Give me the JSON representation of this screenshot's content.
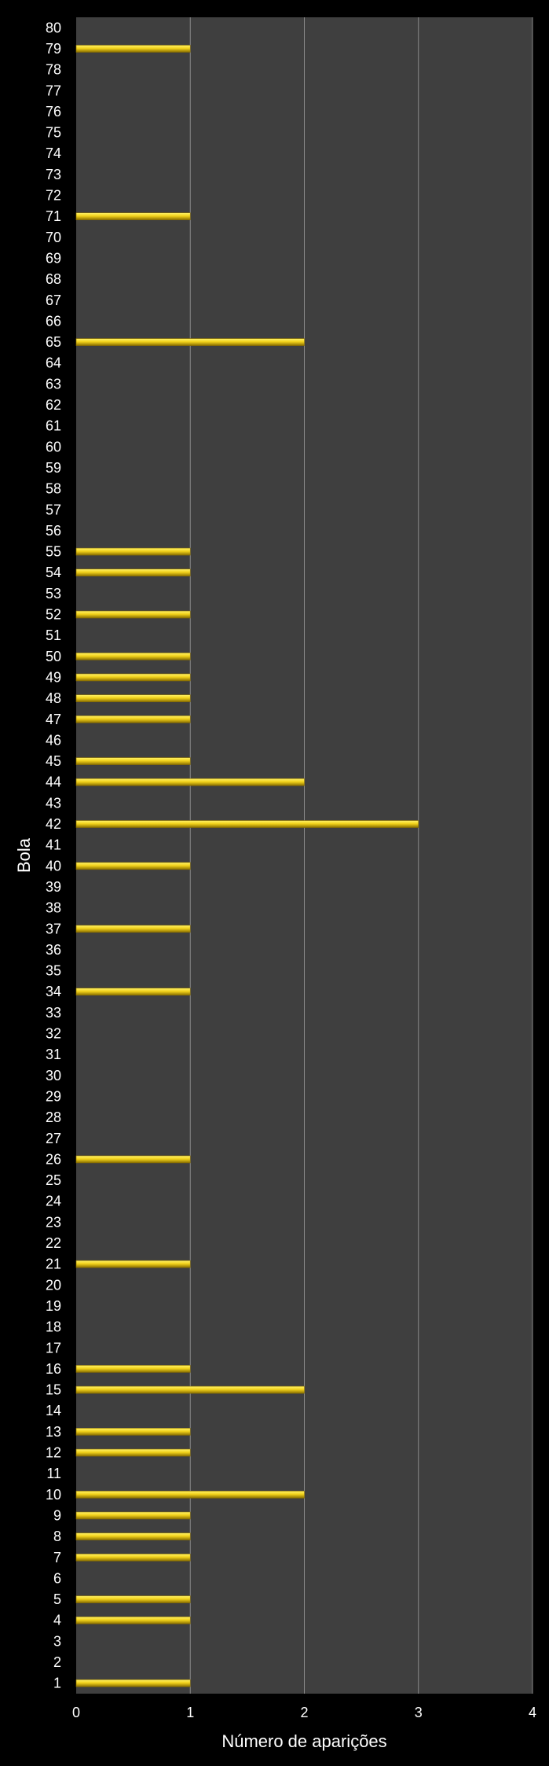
{
  "chart_data": {
    "type": "bar",
    "orientation": "horizontal",
    "title": "",
    "xlabel": "Número de aparições",
    "ylabel": "Bola",
    "xlim": [
      0,
      4
    ],
    "x_ticks": [
      "0",
      "1",
      "2",
      "3",
      "4"
    ],
    "grid": "vertical",
    "legend": "none",
    "categories": [
      "1",
      "2",
      "3",
      "4",
      "5",
      "6",
      "7",
      "8",
      "9",
      "10",
      "11",
      "12",
      "13",
      "14",
      "15",
      "16",
      "17",
      "18",
      "19",
      "20",
      "21",
      "22",
      "23",
      "24",
      "25",
      "26",
      "27",
      "28",
      "29",
      "30",
      "31",
      "32",
      "33",
      "34",
      "35",
      "36",
      "37",
      "38",
      "39",
      "40",
      "41",
      "42",
      "43",
      "44",
      "45",
      "46",
      "47",
      "48",
      "49",
      "50",
      "51",
      "52",
      "53",
      "54",
      "55",
      "56",
      "57",
      "58",
      "59",
      "60",
      "61",
      "62",
      "63",
      "64",
      "65",
      "66",
      "67",
      "68",
      "69",
      "70",
      "71",
      "72",
      "73",
      "74",
      "75",
      "76",
      "77",
      "78",
      "79",
      "80"
    ],
    "values": [
      1,
      0,
      0,
      1,
      1,
      0,
      1,
      1,
      1,
      2,
      0,
      1,
      1,
      0,
      2,
      1,
      0,
      0,
      0,
      0,
      1,
      0,
      0,
      0,
      0,
      1,
      0,
      0,
      0,
      0,
      0,
      0,
      0,
      1,
      0,
      0,
      1,
      0,
      0,
      1,
      0,
      3,
      0,
      2,
      1,
      0,
      1,
      1,
      1,
      1,
      0,
      1,
      0,
      1,
      1,
      0,
      0,
      0,
      0,
      0,
      0,
      0,
      0,
      0,
      2,
      0,
      0,
      0,
      0,
      0,
      1,
      0,
      0,
      0,
      0,
      0,
      0,
      0,
      1,
      0
    ],
    "colors": {
      "background": "#000000",
      "plot_area": "#3f3f3f",
      "grid": "#8a8a8a",
      "bar": "#f2d21b",
      "bar_highlight": "#fff36a",
      "bar_shadow": "#8a6f00",
      "text": "#ffffff"
    }
  }
}
